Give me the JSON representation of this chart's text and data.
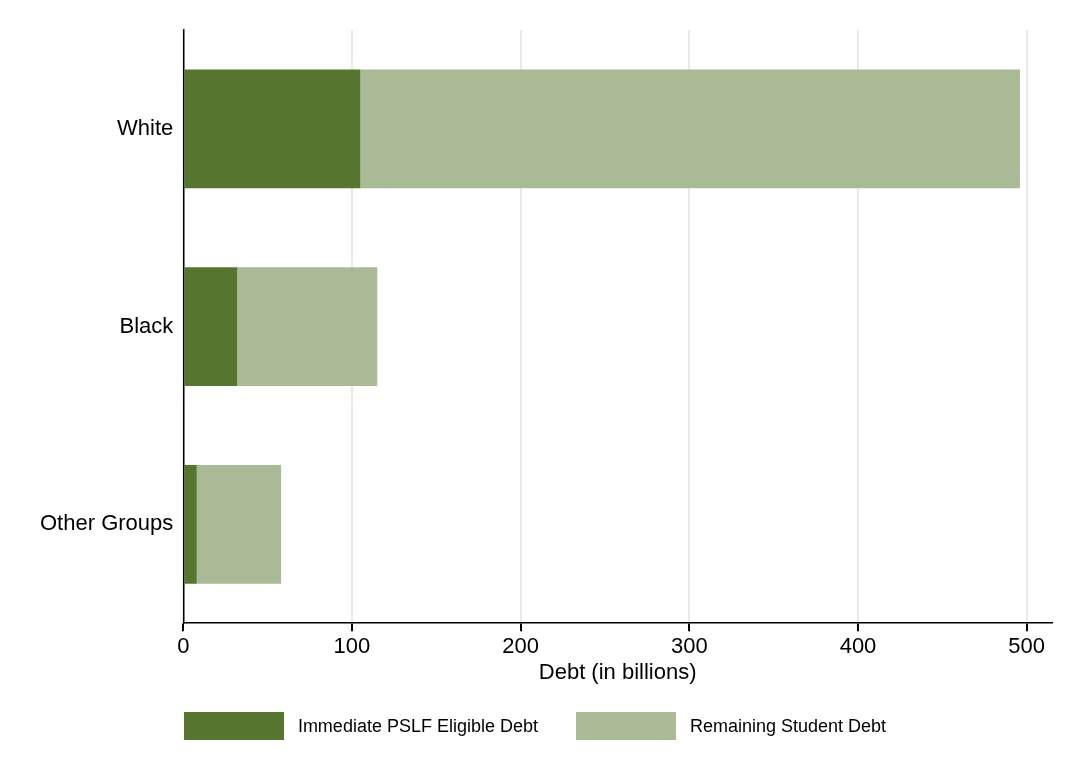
{
  "chart_data": {
    "type": "bar",
    "orientation": "horizontal",
    "stacked": true,
    "xlabel": "Debt (in billions)",
    "categories": [
      "White",
      "Black",
      "Other Groups"
    ],
    "series": [
      {
        "name": "Immediate PSLF Eligible Debt",
        "color": "#56752f",
        "values": [
          105,
          32,
          8
        ]
      },
      {
        "name": "Remaining Student Debt",
        "color": "#aab996",
        "values": [
          391,
          83,
          50
        ]
      }
    ],
    "xlim": [
      0,
      515
    ],
    "xticks": [
      0,
      100,
      200,
      300,
      400,
      500
    ],
    "grid": "x",
    "legend": "bottom"
  }
}
